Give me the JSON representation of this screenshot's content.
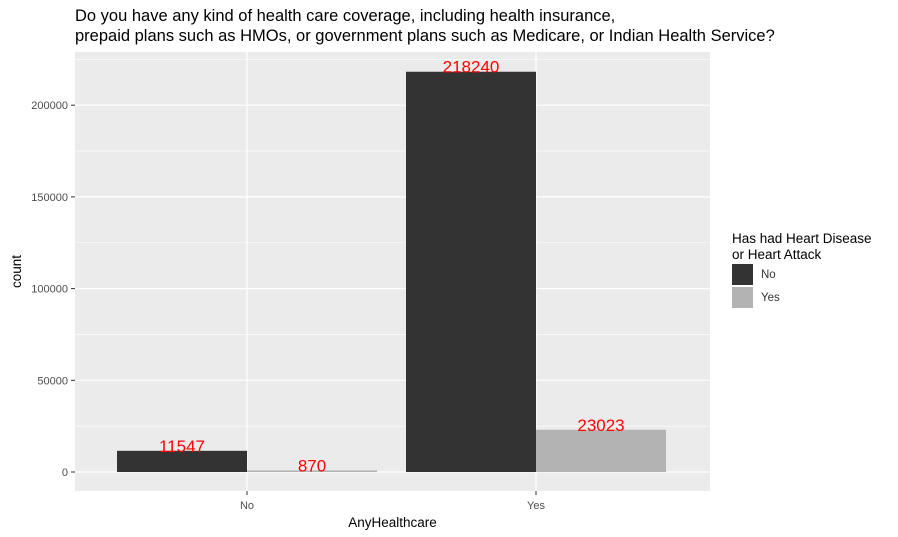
{
  "chart_data": {
    "type": "bar",
    "title_lines": [
      "Do you have any kind of health care coverage, including health insurance,",
      "prepaid plans such as HMOs, or government plans such as Medicare, or Indian Health Service?"
    ],
    "xlabel": "AnyHealthcare",
    "ylabel": "count",
    "categories": [
      "No",
      "Yes"
    ],
    "ylim": [
      0,
      229000
    ],
    "yticks": [
      0,
      50000,
      100000,
      150000,
      200000
    ],
    "ytick_labels": [
      "0",
      "50000",
      "100000",
      "150000",
      "200000"
    ],
    "grid": true,
    "legend": {
      "title_lines": [
        "Has had Heart Disease",
        "or Heart Attack"
      ],
      "placement": "right"
    },
    "series": [
      {
        "name": "No",
        "color": "#333333",
        "values": [
          11547,
          218240
        ],
        "labels": [
          "11547",
          "218240"
        ]
      },
      {
        "name": "Yes",
        "color": "#b3b3b3",
        "values": [
          870,
          23023
        ],
        "labels": [
          "870",
          "23023"
        ]
      }
    ],
    "label_color": "#ff0000",
    "panel_color": "#ebebeb"
  }
}
